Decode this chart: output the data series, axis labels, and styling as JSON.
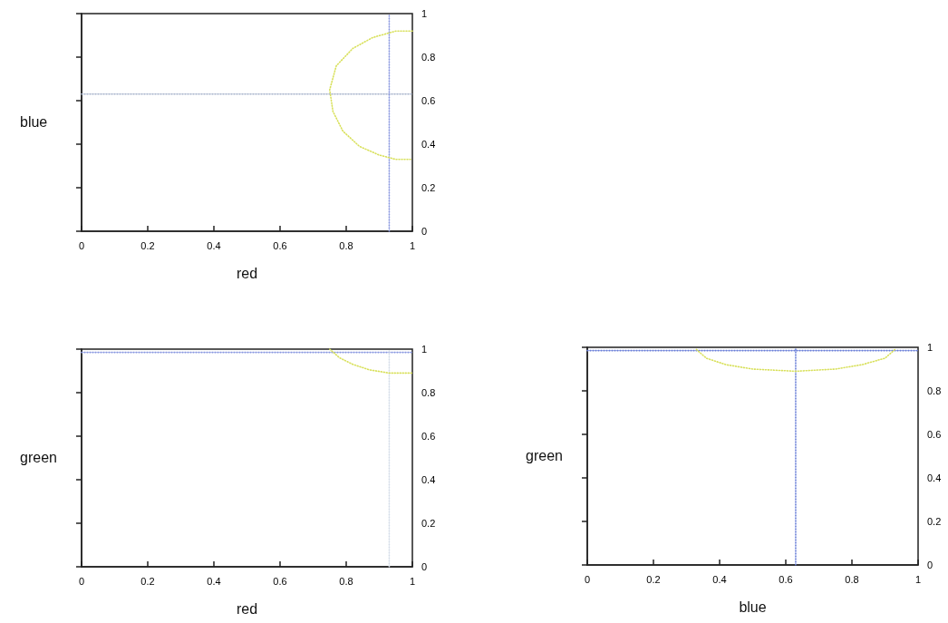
{
  "chart_data": [
    {
      "type": "line",
      "xlabel": "red",
      "ylabel": "blue",
      "xlim": [
        0,
        1
      ],
      "ylim": [
        0,
        1
      ],
      "xticks": [
        0,
        0.2,
        0.4,
        0.6,
        0.8,
        1
      ],
      "yticks": [
        0,
        0.2,
        0.4,
        0.6,
        0.8,
        1
      ],
      "line_style": "dotted",
      "marker": "none",
      "series": [
        {
          "color": "#a8b4cc",
          "x": [
            0,
            1
          ],
          "values": [
            0.63,
            0.63
          ]
        },
        {
          "color": "#8a98e0",
          "x": [
            0.93,
            0.93
          ],
          "values": [
            0,
            1
          ]
        },
        {
          "color": "#d8e05a",
          "x": [
            1,
            0.95,
            0.88,
            0.82,
            0.77,
            0.75,
            0.76,
            0.79,
            0.84,
            0.9,
            0.95,
            1
          ],
          "values": [
            0.92,
            0.92,
            0.89,
            0.84,
            0.76,
            0.65,
            0.55,
            0.46,
            0.39,
            0.35,
            0.33,
            0.33
          ]
        }
      ]
    },
    {
      "type": "line",
      "xlabel": "red",
      "ylabel": "green",
      "xlim": [
        0,
        1
      ],
      "ylim": [
        0,
        1
      ],
      "xticks": [
        0,
        0.2,
        0.4,
        0.6,
        0.8,
        1
      ],
      "yticks": [
        0,
        0.2,
        0.4,
        0.6,
        0.8,
        1
      ],
      "line_style": "dotted",
      "marker": "none",
      "series": [
        {
          "color": "#8a98e0",
          "x": [
            0,
            1
          ],
          "values": [
            0.985,
            0.985
          ]
        },
        {
          "color": "#d4dce8",
          "x": [
            0.93,
            0.93
          ],
          "values": [
            0,
            1
          ]
        },
        {
          "color": "#d8e05a",
          "x": [
            0.75,
            0.78,
            0.82,
            0.87,
            0.93,
            1
          ],
          "values": [
            1,
            0.96,
            0.93,
            0.905,
            0.89,
            0.89
          ]
        }
      ]
    },
    {
      "type": "line",
      "xlabel": "blue",
      "ylabel": "green",
      "xlim": [
        0,
        1
      ],
      "ylim": [
        0,
        1
      ],
      "xticks": [
        0,
        0.2,
        0.4,
        0.6,
        0.8,
        1
      ],
      "yticks": [
        0,
        0.2,
        0.4,
        0.6,
        0.8,
        1
      ],
      "line_style": "dotted",
      "marker": "none",
      "series": [
        {
          "color": "#6a7fd8",
          "x": [
            0,
            1
          ],
          "values": [
            0.985,
            0.985
          ]
        },
        {
          "color": "#6a7fd8",
          "x": [
            0.63,
            0.63
          ],
          "values": [
            0,
            1
          ]
        },
        {
          "color": "#d8e05a",
          "x": [
            0.33,
            0.36,
            0.42,
            0.5,
            0.63,
            0.75,
            0.83,
            0.9,
            0.93
          ],
          "values": [
            0.99,
            0.95,
            0.92,
            0.9,
            0.89,
            0.9,
            0.92,
            0.95,
            0.99
          ]
        }
      ]
    }
  ]
}
